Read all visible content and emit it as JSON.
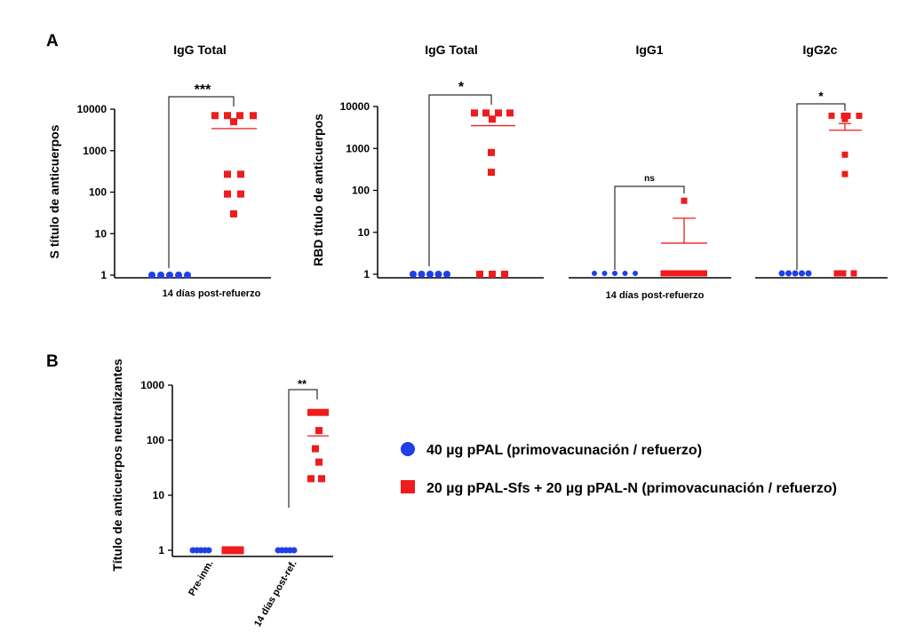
{
  "figure": {
    "panel_labels": [
      "A",
      "B"
    ],
    "colors": {
      "group1": "#1f3fe8",
      "group2": "#ee1c1c",
      "axis": "#000000"
    },
    "legend": [
      {
        "label": "40 µg pPAL (primovacunación / refuerzo)",
        "color": "#1f3fe8",
        "shape": "circle"
      },
      {
        "label": "20 µg pPAL-Sfs + 20 µg pPAL-N (primovacunación / refuerzo)",
        "color": "#ee1c1c",
        "shape": "square"
      }
    ]
  },
  "chart_data": [
    {
      "id": "A1",
      "type": "scatter",
      "title": "IgG Total",
      "ylabel": "S título de anticuerpos",
      "xlabel": "14 días post-refuerzo",
      "yscale": "log",
      "ylim": [
        1,
        10000
      ],
      "yticks": [
        "1",
        "10",
        "100",
        "1000",
        "10000"
      ],
      "series": [
        {
          "color": "#1f3fe8",
          "marker": "circle",
          "values": [
            1,
            1,
            1,
            1,
            1
          ]
        },
        {
          "color": "#ee1c1c",
          "marker": "square",
          "values": [
            7000,
            7000,
            7000,
            7000,
            5000,
            270,
            270,
            90,
            90,
            30
          ],
          "mean": 3400
        }
      ],
      "significance": [
        {
          "label": "***"
        }
      ]
    },
    {
      "id": "A2",
      "type": "scatter",
      "title": "IgG Total",
      "ylabel": "RBD título de anticuerpos",
      "xlabel": "14 días post-refuerzo",
      "yscale": "log",
      "ylim": [
        1,
        10000
      ],
      "yticks": [
        "1",
        "10",
        "100",
        "1000",
        "10000"
      ],
      "series": [
        {
          "color": "#1f3fe8",
          "marker": "circle",
          "values": [
            1,
            1,
            1,
            1,
            1
          ]
        },
        {
          "color": "#ee1c1c",
          "marker": "square",
          "values": [
            7000,
            7000,
            7000,
            7000,
            5000,
            800,
            270,
            1,
            1,
            1
          ],
          "mean": 3500
        }
      ],
      "significance": [
        {
          "label": "*"
        }
      ]
    },
    {
      "id": "A3",
      "type": "scatter",
      "title": "IgG1",
      "ylim": [
        1,
        10000
      ],
      "yscale": "log",
      "series": [
        {
          "color": "#1f3fe8",
          "marker": "circle",
          "values": [
            1,
            1,
            1,
            1,
            1
          ]
        },
        {
          "color": "#ee1c1c",
          "marker": "square",
          "values": [
            55,
            1,
            1,
            1,
            1,
            1,
            1,
            1,
            1
          ],
          "mean": 5.3,
          "sem_upper": 21
        }
      ],
      "significance": [
        {
          "label": "ns"
        }
      ]
    },
    {
      "id": "A4",
      "type": "scatter",
      "title": "IgG2c",
      "ylim": [
        1,
        10000
      ],
      "yscale": "log",
      "series": [
        {
          "color": "#1f3fe8",
          "marker": "circle",
          "values": [
            1,
            1,
            1,
            1,
            1
          ]
        },
        {
          "color": "#ee1c1c",
          "marker": "square",
          "values": [
            6000,
            6000,
            6000,
            6000,
            5000,
            700,
            240,
            1,
            1,
            1
          ],
          "mean": 2700,
          "sem_upper": 3900
        }
      ],
      "significance": [
        {
          "label": "*"
        }
      ],
      "shared_xlabel": "14 días post-refuerzo"
    },
    {
      "id": "B",
      "type": "scatter",
      "ylabel": "Título de anticuerpos neutralizantes",
      "yscale": "log",
      "ylim": [
        1,
        1000
      ],
      "yticks": [
        "1",
        "10",
        "100",
        "1000"
      ],
      "categories": [
        "Pre-inm.",
        "14 días post-ref."
      ],
      "series": [
        {
          "color": "#1f3fe8",
          "marker": "circle",
          "values_by_category": [
            [
              1,
              1,
              1,
              1,
              1
            ],
            [
              1,
              1,
              1,
              1,
              1
            ]
          ]
        },
        {
          "color": "#ee1c1c",
          "marker": "square",
          "values_by_category": [
            [
              1,
              1,
              1,
              1,
              1
            ],
            [
              320,
              320,
              320,
              150,
              70,
              40,
              20,
              20
            ]
          ],
          "mean": [
            1,
            120
          ]
        }
      ],
      "significance": [
        {
          "label": "**"
        }
      ]
    }
  ]
}
